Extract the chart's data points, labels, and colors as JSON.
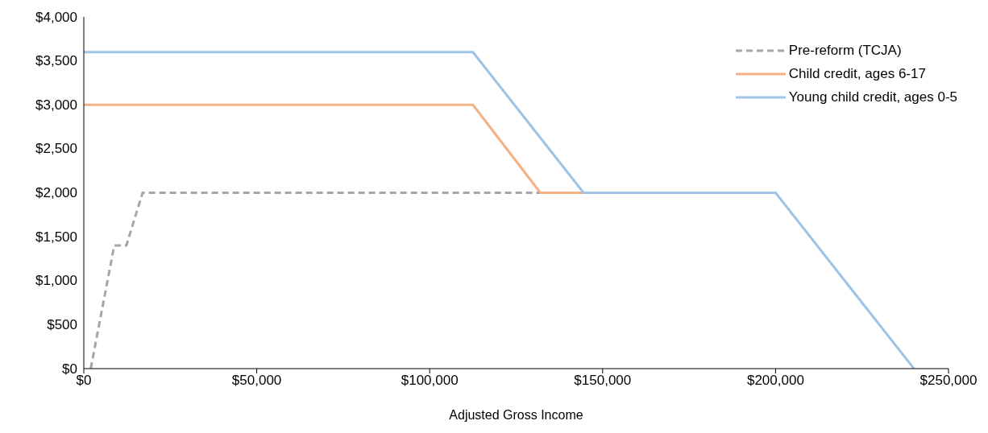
{
  "chart_data": {
    "type": "line",
    "xlabel": "Adjusted Gross Income",
    "xlim": [
      0,
      250000
    ],
    "xticks": [
      {
        "value": 0,
        "label": "$0"
      },
      {
        "value": 50000,
        "label": "$50,000"
      },
      {
        "value": 100000,
        "label": "$100,000"
      },
      {
        "value": 150000,
        "label": "$150,000"
      },
      {
        "value": 200000,
        "label": "$200,000"
      },
      {
        "value": 250000,
        "label": "$250,000"
      }
    ],
    "ylim": [
      0,
      4000
    ],
    "yticks": [
      {
        "value": 0,
        "label": "$0"
      },
      {
        "value": 500,
        "label": "$500"
      },
      {
        "value": 1000,
        "label": "$1,000"
      },
      {
        "value": 1500,
        "label": "$1,500"
      },
      {
        "value": 2000,
        "label": "$2,000"
      },
      {
        "value": 2500,
        "label": "$2,500"
      },
      {
        "value": 3000,
        "label": "$3,000"
      },
      {
        "value": 3500,
        "label": "$3,500"
      },
      {
        "value": 4000,
        "label": "$4,000"
      }
    ],
    "grid": false,
    "legend": "top right",
    "marker": "none",
    "series": [
      {
        "name": "Pre-reform (TCJA)",
        "color": "#a6a6a6",
        "line_style": "dashed",
        "x": [
          2000,
          8800,
          12300,
          17000,
          132000
        ],
        "values": [
          0,
          1400,
          1400,
          2000,
          2000
        ]
      },
      {
        "name": "Child credit, ages 6-17",
        "color": "#f4b183",
        "line_style": "solid",
        "x": [
          0,
          112500,
          132000,
          144500
        ],
        "values": [
          3000,
          3000,
          2000,
          2000
        ]
      },
      {
        "name": "Young child credit, ages 0-5",
        "color": "#9dc3e6",
        "line_style": "solid",
        "x": [
          0,
          112500,
          144500,
          200000,
          240000
        ],
        "values": [
          3600,
          3600,
          2000,
          2000,
          0
        ]
      }
    ]
  }
}
